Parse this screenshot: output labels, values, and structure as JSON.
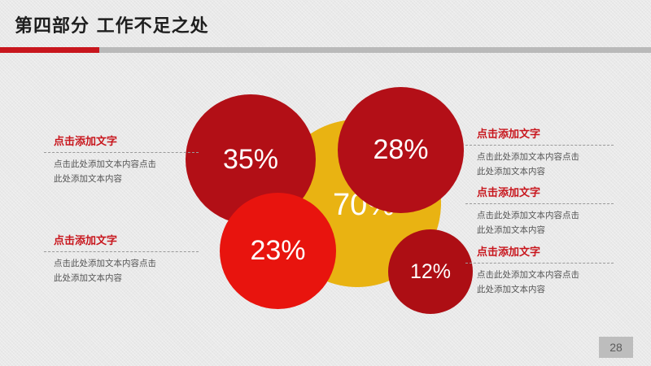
{
  "header": {
    "title": "第四部分  工作不足之处"
  },
  "circles": {
    "yellow": "70%",
    "left_top": "35%",
    "right_top": "28%",
    "left_bottom": "23%",
    "right_bottom": "12%"
  },
  "blocks": [
    {
      "heading": "点击添加文字",
      "line1": "点击此处添加文本内容点击",
      "line2": "此处添加文本内容"
    },
    {
      "heading": "点击添加文字",
      "line1": "点击此处添加文本内容点击",
      "line2": "此处添加文本内容"
    },
    {
      "heading": "点击添加文字",
      "line1": "点击此处添加文本内容点击",
      "line2": "此处添加文本内容"
    },
    {
      "heading": "点击添加文字",
      "line1": "点击此处添加文本内容点击",
      "line2": "此处添加文本内容"
    },
    {
      "heading": "点击添加文字",
      "line1": "点击此处添加文本内容点击",
      "line2": "此处添加文本内容"
    }
  ],
  "page_number": "28",
  "colors": {
    "accent_red": "#c8161d",
    "dark_red": "#b20f16",
    "bright_red": "#e8140e",
    "yellow": "#e9b312"
  }
}
